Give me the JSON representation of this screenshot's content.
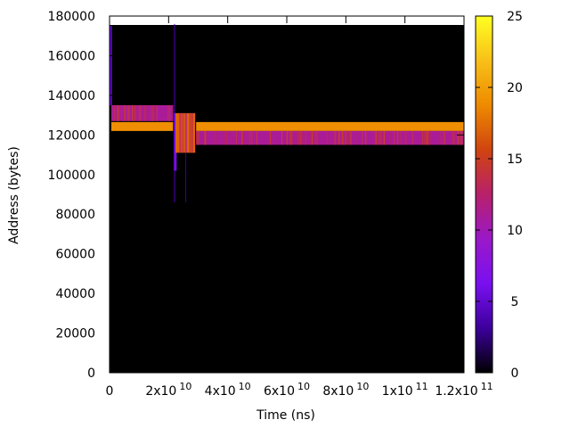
{
  "chart_data": {
    "type": "heatmap",
    "title": "",
    "xlabel": "Time (ns)",
    "ylabel": "Address (bytes)",
    "xlim": [
      0,
      120000000000
    ],
    "ylim": [
      0,
      180000
    ],
    "grid": false,
    "background_color": "#000000",
    "x_ticks": [
      {
        "value": 0,
        "mant": "0",
        "exp": ""
      },
      {
        "value": 20000000000,
        "mant": "2x10",
        "exp": "10"
      },
      {
        "value": 40000000000,
        "mant": "4x10",
        "exp": "10"
      },
      {
        "value": 60000000000,
        "mant": "6x10",
        "exp": "10"
      },
      {
        "value": 80000000000,
        "mant": "8x10",
        "exp": "10"
      },
      {
        "value": 100000000000,
        "mant": "1x10",
        "exp": "11"
      },
      {
        "value": 120000000000,
        "mant": "1.2x10",
        "exp": "11"
      }
    ],
    "y_ticks": [
      {
        "value": 0,
        "label": "0"
      },
      {
        "value": 20000,
        "label": "20000"
      },
      {
        "value": 40000,
        "label": "40000"
      },
      {
        "value": 60000,
        "label": "60000"
      },
      {
        "value": 80000,
        "label": "80000"
      },
      {
        "value": 100000,
        "label": "100000"
      },
      {
        "value": 120000,
        "label": "120000"
      },
      {
        "value": 140000,
        "label": "140000"
      },
      {
        "value": 160000,
        "label": "160000"
      },
      {
        "value": 180000,
        "label": "180000"
      }
    ],
    "colorbar": {
      "range": [
        0,
        25
      ],
      "ticks": [
        {
          "value": 0,
          "label": "0"
        },
        {
          "value": 5,
          "label": "5"
        },
        {
          "value": 10,
          "label": "10"
        },
        {
          "value": 15,
          "label": "15"
        },
        {
          "value": 20,
          "label": "20"
        },
        {
          "value": 25,
          "label": "25"
        }
      ],
      "stops": [
        "#000000",
        "#3c009c",
        "#7a10f0",
        "#9a18c8",
        "#b8206a",
        "#d04410",
        "#ee8a00",
        "#f8c018",
        "#ffff22"
      ]
    },
    "regions": [
      {
        "x0": 0,
        "x1": 120000000000,
        "y0": 0,
        "y1": 175500,
        "value": 0
      },
      {
        "x0": 0,
        "x1": 800000000,
        "y0": 135000,
        "y1": 175000,
        "value": 5
      },
      {
        "x0": 600000000,
        "x1": 21500000000,
        "y0": 127000,
        "y1": 135000,
        "value": 11
      },
      {
        "x0": 600000000,
        "x1": 21500000000,
        "y0": 122000,
        "y1": 126500,
        "value": 19
      },
      {
        "x0": 21700000000,
        "x1": 22700000000,
        "y0": 102000,
        "y1": 131000,
        "value": 7
      },
      {
        "x0": 22300000000,
        "x1": 29000000000,
        "y0": 111000,
        "y1": 131000,
        "value": 17
      },
      {
        "x0": 29300000000,
        "x1": 120000000000,
        "y0": 122000,
        "y1": 126500,
        "value": 19
      },
      {
        "x0": 29300000000,
        "x1": 120000000000,
        "y0": 115000,
        "y1": 122000,
        "value": 11
      }
    ],
    "spikes": [
      {
        "x": 22000000000,
        "y0": 86000,
        "y1": 176000,
        "value": 4
      },
      {
        "x": 25800000000,
        "y0": 86000,
        "y1": 111000,
        "value": 3
      }
    ],
    "stripe_bands": [
      {
        "x0": 600000000,
        "x1": 21500000000,
        "y0": 127000,
        "y1": 135000,
        "count": 45,
        "value": 14
      },
      {
        "x0": 29300000000,
        "x1": 120000000000,
        "y0": 115000,
        "y1": 122000,
        "count": 160,
        "value": 14
      },
      {
        "x0": 22300000000,
        "x1": 29000000000,
        "y0": 111000,
        "y1": 131000,
        "count": 10,
        "value": 13
      }
    ]
  }
}
